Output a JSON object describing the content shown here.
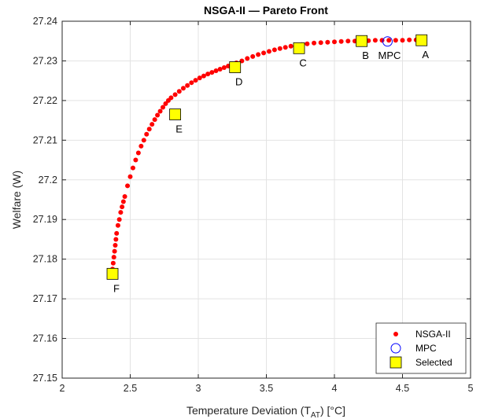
{
  "chart_data": {
    "type": "scatter",
    "title": "NSGA-II — Pareto Front",
    "xlabel_main": "Temperature Deviation (T",
    "xlabel_sub": "AT",
    "xlabel_tail": ") [°C]",
    "ylabel": "Welfare (W)",
    "xlim": [
      2,
      5
    ],
    "ylim": [
      27.15,
      27.24
    ],
    "xticks": [
      2,
      2.5,
      3,
      3.5,
      4,
      4.5,
      5
    ],
    "xtick_labels": [
      "2",
      "2.5",
      "3",
      "3.5",
      "4",
      "4.5",
      "5"
    ],
    "yticks": [
      27.15,
      27.16,
      27.17,
      27.18,
      27.19,
      27.2,
      27.21,
      27.22,
      27.23,
      27.24
    ],
    "ytick_labels": [
      "27.15",
      "27.16",
      "27.17",
      "27.18",
      "27.19",
      "27.2",
      "27.21",
      "27.22",
      "27.23",
      "27.24"
    ],
    "grid": true,
    "legend_position": "bottom-right",
    "colors": {
      "front": "#ff0000",
      "mpc": "#0000ff",
      "selected": "#ffff00"
    },
    "series": [
      {
        "name": "NSGA-II",
        "marker": "dot",
        "x": [
          2.37,
          2.375,
          2.38,
          2.385,
          2.39,
          2.395,
          2.4,
          2.41,
          2.42,
          2.43,
          2.44,
          2.45,
          2.46,
          2.48,
          2.5,
          2.52,
          2.54,
          2.56,
          2.58,
          2.6,
          2.62,
          2.64,
          2.66,
          2.68,
          2.7,
          2.72,
          2.74,
          2.76,
          2.78,
          2.8,
          2.83,
          2.86,
          2.89,
          2.92,
          2.95,
          2.98,
          3.01,
          3.04,
          3.07,
          3.1,
          3.13,
          3.16,
          3.19,
          3.22,
          3.25,
          3.28,
          3.32,
          3.36,
          3.4,
          3.44,
          3.48,
          3.52,
          3.56,
          3.6,
          3.64,
          3.68,
          3.72,
          3.76,
          3.8,
          3.85,
          3.9,
          3.95,
          4.0,
          4.05,
          4.1,
          4.15,
          4.2,
          4.25,
          4.3,
          4.35,
          4.4,
          4.45,
          4.5,
          4.55,
          4.6,
          4.64
        ],
        "y": [
          27.1775,
          27.179,
          27.1805,
          27.182,
          27.1835,
          27.185,
          27.1865,
          27.1885,
          27.19,
          27.1918,
          27.1932,
          27.1945,
          27.1958,
          27.1985,
          27.2008,
          27.203,
          27.205,
          27.2068,
          27.2085,
          27.21,
          27.2115,
          27.2128,
          27.214,
          27.2152,
          27.2163,
          27.2173,
          27.2183,
          27.2192,
          27.22,
          27.2207,
          27.2215,
          27.2223,
          27.2231,
          27.2238,
          27.2245,
          27.2251,
          27.2257,
          27.2262,
          27.2267,
          27.2271,
          27.2275,
          27.2279,
          27.2283,
          27.2287,
          27.2291,
          27.2295,
          27.23,
          27.2306,
          27.2311,
          27.2316,
          27.232,
          27.2324,
          27.2328,
          27.2331,
          27.2334,
          27.2337,
          27.2339,
          27.2341,
          27.2343,
          27.2345,
          27.2346,
          27.2347,
          27.2348,
          27.2349,
          27.235,
          27.235,
          27.2351,
          27.2351,
          27.2352,
          27.2352,
          27.2352,
          27.2352,
          27.2352,
          27.2353,
          27.2353,
          27.2353
        ]
      },
      {
        "name": "MPC",
        "marker": "circle",
        "x": [
          4.39
        ],
        "y": [
          27.2349
        ]
      },
      {
        "name": "Selected",
        "marker": "square",
        "x": [
          4.64,
          4.2,
          3.74,
          3.27,
          2.83,
          2.37
        ],
        "y": [
          27.2352,
          27.235,
          27.2332,
          27.2284,
          27.2165,
          27.1763
        ],
        "labels": [
          "A",
          "B",
          "C",
          "D",
          "E",
          "F"
        ]
      }
    ],
    "mpc_annotation": "MPC"
  }
}
